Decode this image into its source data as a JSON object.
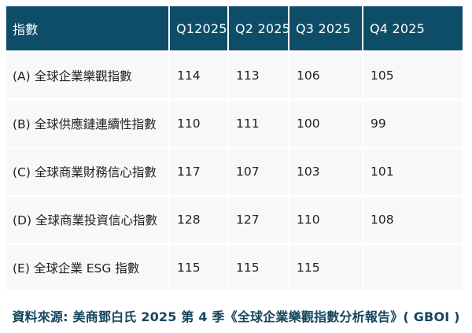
{
  "colors": {
    "header_bg": "#0E4D68",
    "header_text": "#FFFFFF",
    "row_bg": "#F6F8FA",
    "body_text": "#1F2123",
    "source_text": "#14465E",
    "page_bg": "#FFFFFF"
  },
  "chart_data": {
    "type": "table",
    "columns": [
      "指數",
      "Q12025",
      "Q2 2025",
      "Q3 2025",
      "Q4 2025"
    ],
    "rows": [
      {
        "label": "(A) 全球企業樂觀指數",
        "values": [
          "114",
          "113",
          "106",
          "105"
        ]
      },
      {
        "label": "(B) 全球供應鏈連續性指數",
        "values": [
          "110",
          "111",
          "100",
          "99"
        ]
      },
      {
        "label": "(C) 全球商業財務信心指數",
        "values": [
          "117",
          "107",
          "103",
          "101"
        ]
      },
      {
        "label": "(D) 全球商業投資信心指數",
        "values": [
          "128",
          "127",
          "110",
          "108"
        ]
      },
      {
        "label": "(E) 全球企業 ESG 指數",
        "values": [
          "115",
          "115",
          "115",
          ""
        ]
      }
    ],
    "source_note": "資料來源: 美商鄧白氏 2025 第 4 季《全球企業樂觀指數分析報告》( GBOI )"
  }
}
